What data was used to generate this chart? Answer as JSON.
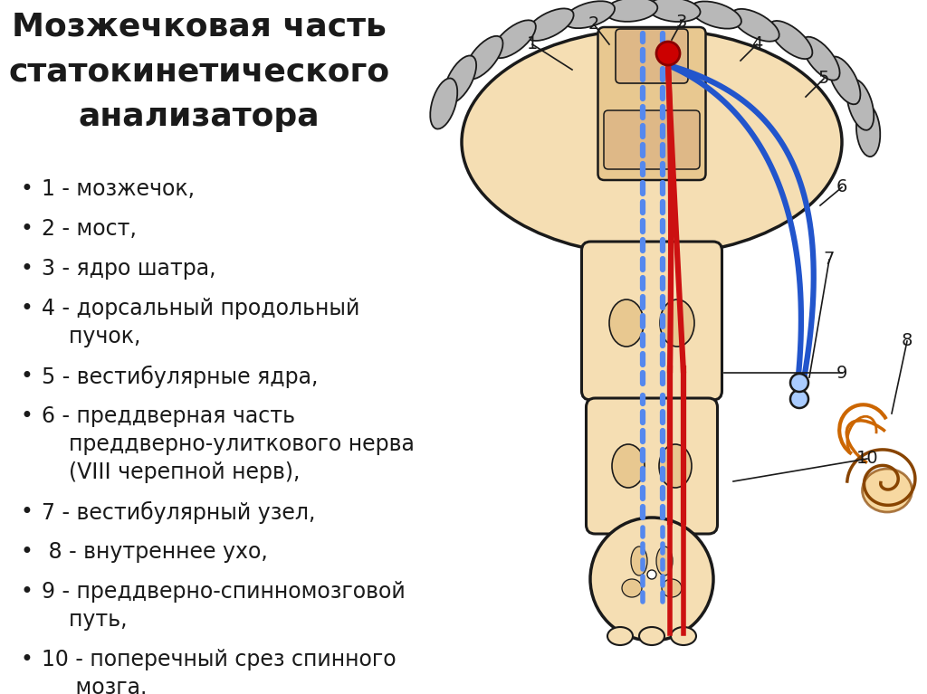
{
  "title_lines": [
    "Мозжечковая часть",
    "статокинетического",
    "анализатора"
  ],
  "bullet_items_flat": [
    [
      "1 - мозжечок,"
    ],
    [
      "2 - мост,"
    ],
    [
      "3 - ядро шатра,"
    ],
    [
      "4 - дорсальный продольный",
      "    пучок,"
    ],
    [
      "5 - вестибулярные ядра,"
    ],
    [
      "6 - преддверная часть",
      "    преддверно-улиткового нерва",
      "    (VIII черепной нерв),"
    ],
    [
      "7 - вестибулярный узел,"
    ],
    [
      " 8 - внутреннее ухо,"
    ],
    [
      "9 - преддверно-спинномозговой",
      "    путь,"
    ],
    [
      "10 - поперечный срез спинного",
      "     мозга."
    ]
  ],
  "bg_color": "#ffffff",
  "text_color": "#1a1a1a",
  "title_fontsize": 26,
  "body_fontsize": 17,
  "cerebellum_fill": "#f5deb3",
  "cerebellum_edge": "#1a1a1a",
  "cortex_fill": "#b8b8b8",
  "cortex_edge": "#1a1a1a",
  "pons_fill": "#e8c890",
  "red_color": "#cc1111",
  "blue_color": "#2255cc",
  "blue_dash": "#5588ee",
  "ear_fill": "#cc6600",
  "node_red": "#cc0000",
  "medulla_fill": "#deb887",
  "spinal_inner": "#c8a060"
}
